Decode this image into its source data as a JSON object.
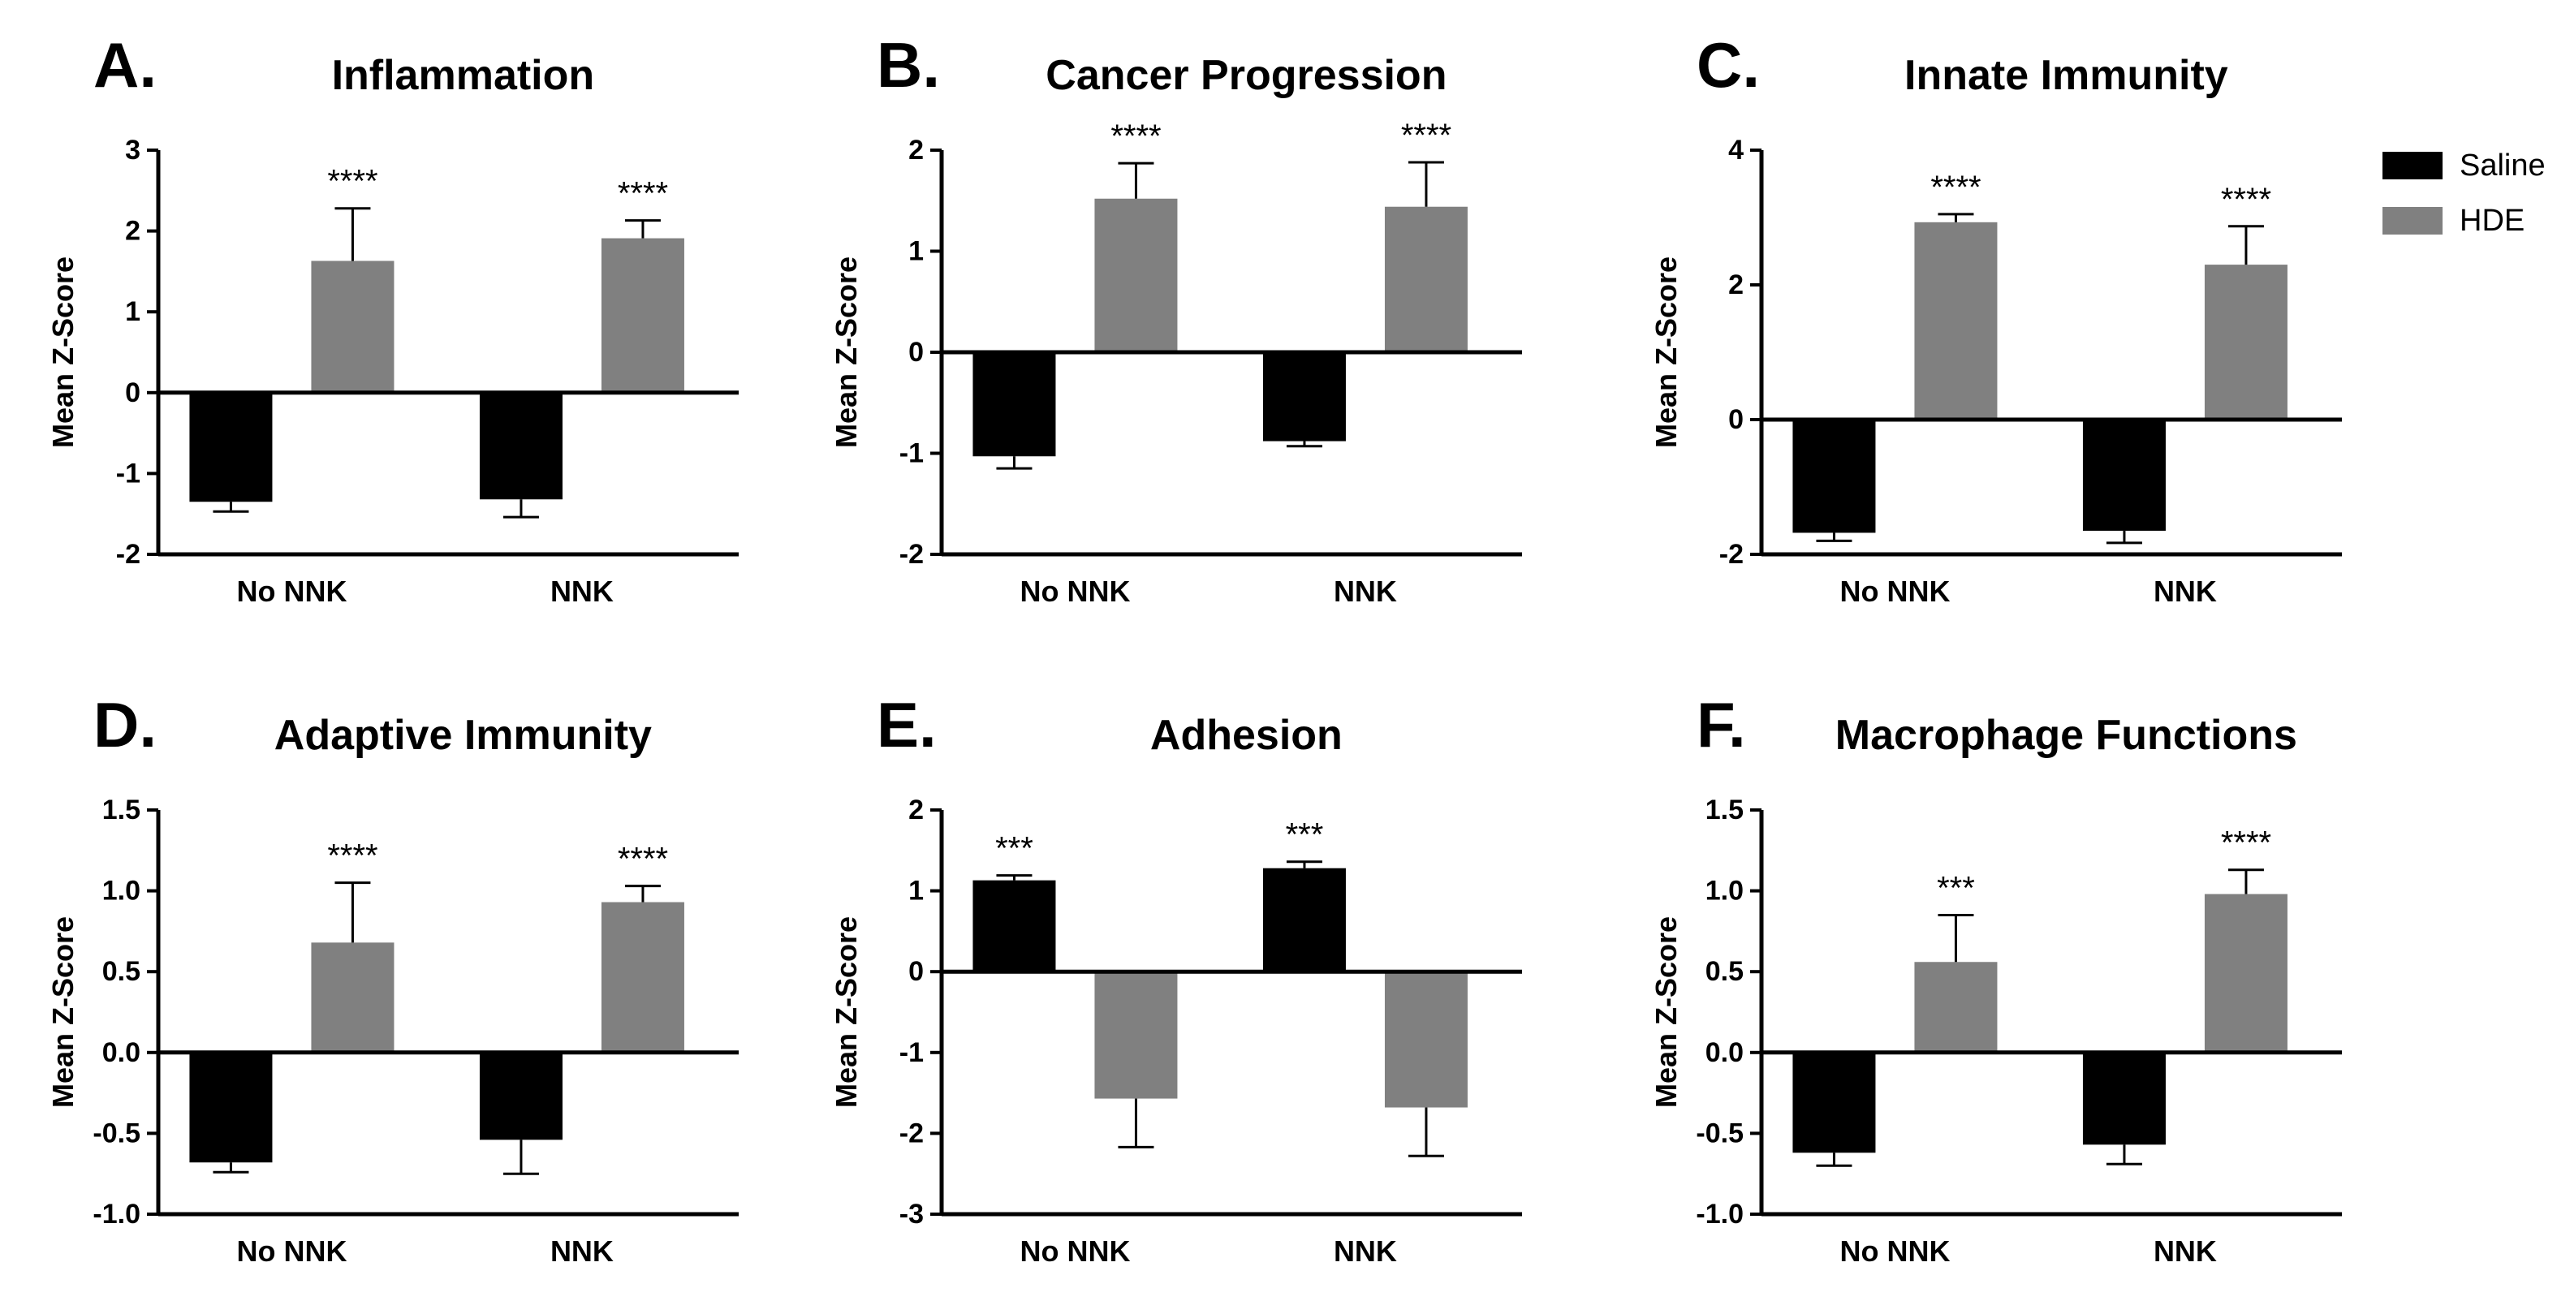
{
  "colors": {
    "saline": "#000000",
    "hde": "#808080"
  },
  "legend": [
    {
      "key": "saline",
      "label": "Saline"
    },
    {
      "key": "hde",
      "label": "HDE"
    }
  ],
  "chart_data": [
    {
      "type": "bar",
      "letter": "A.",
      "title": "Inflammation",
      "ylabel": "Mean Z-Score",
      "categories": [
        "No NNK",
        "NNK"
      ],
      "ylim": [
        -2,
        3
      ],
      "yticks": [
        {
          "v": 3,
          "label": "3"
        },
        {
          "v": 2,
          "label": "2"
        },
        {
          "v": 1,
          "label": "1"
        },
        {
          "v": 0,
          "label": "0"
        },
        {
          "v": -1,
          "label": "-1"
        },
        {
          "v": -2,
          "label": "-2"
        }
      ],
      "series": [
        {
          "name": "Saline",
          "key": "saline",
          "values": [
            -1.35,
            -1.32
          ],
          "errors": [
            0.12,
            0.22
          ],
          "sig": [
            "",
            ""
          ]
        },
        {
          "name": "HDE",
          "key": "hde",
          "values": [
            1.63,
            1.91
          ],
          "errors": [
            0.65,
            0.22
          ],
          "sig": [
            "****",
            "****"
          ]
        }
      ]
    },
    {
      "type": "bar",
      "letter": "B.",
      "title": "Cancer Progression",
      "ylabel": "Mean Z-Score",
      "categories": [
        "No NNK",
        "NNK"
      ],
      "ylim": [
        -2,
        2
      ],
      "yticks": [
        {
          "v": 2,
          "label": "2"
        },
        {
          "v": 1,
          "label": "1"
        },
        {
          "v": 0,
          "label": "0"
        },
        {
          "v": -1,
          "label": "-1"
        },
        {
          "v": -2,
          "label": "-2"
        }
      ],
      "series": [
        {
          "name": "Saline",
          "key": "saline",
          "values": [
            -1.03,
            -0.88
          ],
          "errors": [
            0.12,
            0.05
          ],
          "sig": [
            "",
            ""
          ]
        },
        {
          "name": "HDE",
          "key": "hde",
          "values": [
            1.52,
            1.44
          ],
          "errors": [
            0.35,
            0.44
          ],
          "sig": [
            "****",
            "****"
          ]
        }
      ]
    },
    {
      "type": "bar",
      "letter": "C.",
      "title": "Innate Immunity",
      "ylabel": "Mean Z-Score",
      "categories": [
        "No NNK",
        "NNK"
      ],
      "ylim": [
        -2,
        4
      ],
      "yticks": [
        {
          "v": 4,
          "label": "4"
        },
        {
          "v": 2,
          "label": "2"
        },
        {
          "v": 0,
          "label": "0"
        },
        {
          "v": -2,
          "label": "-2"
        }
      ],
      "series": [
        {
          "name": "Saline",
          "key": "saline",
          "values": [
            -1.68,
            -1.65
          ],
          "errors": [
            0.12,
            0.18
          ],
          "sig": [
            "",
            ""
          ]
        },
        {
          "name": "HDE",
          "key": "hde",
          "values": [
            2.93,
            2.3
          ],
          "errors": [
            0.12,
            0.57
          ],
          "sig": [
            "****",
            "****"
          ]
        }
      ]
    },
    {
      "type": "bar",
      "letter": "D.",
      "title": "Adaptive Immunity",
      "ylabel": "Mean Z-Score",
      "categories": [
        "No NNK",
        "NNK"
      ],
      "ylim": [
        -1.0,
        1.5
      ],
      "yticks": [
        {
          "v": 1.5,
          "label": "1.5"
        },
        {
          "v": 1.0,
          "label": "1.0"
        },
        {
          "v": 0.5,
          "label": "0.5"
        },
        {
          "v": 0,
          "label": "0.0"
        },
        {
          "v": -0.5,
          "label": "-0.5"
        },
        {
          "v": -1.0,
          "label": "-1.0"
        }
      ],
      "series": [
        {
          "name": "Saline",
          "key": "saline",
          "values": [
            -0.68,
            -0.54
          ],
          "errors": [
            0.06,
            0.21
          ],
          "sig": [
            "",
            ""
          ]
        },
        {
          "name": "HDE",
          "key": "hde",
          "values": [
            0.68,
            0.93
          ],
          "errors": [
            0.37,
            0.1
          ],
          "sig": [
            "****",
            "****"
          ]
        }
      ]
    },
    {
      "type": "bar",
      "letter": "E.",
      "title": "Adhesion",
      "ylabel": "Mean Z-Score",
      "categories": [
        "No NNK",
        "NNK"
      ],
      "ylim": [
        -3,
        2
      ],
      "yticks": [
        {
          "v": 2,
          "label": "2"
        },
        {
          "v": 1,
          "label": "1"
        },
        {
          "v": 0,
          "label": "0"
        },
        {
          "v": -1,
          "label": "-1"
        },
        {
          "v": -2,
          "label": "-2"
        },
        {
          "v": -3,
          "label": "-3"
        }
      ],
      "series": [
        {
          "name": "Saline",
          "key": "saline",
          "values": [
            1.13,
            1.28
          ],
          "errors": [
            0.06,
            0.08
          ],
          "sig": [
            "***",
            "***"
          ]
        },
        {
          "name": "HDE",
          "key": "hde",
          "values": [
            -1.57,
            -1.68
          ],
          "errors": [
            0.6,
            0.6
          ],
          "sig": [
            "",
            ""
          ]
        }
      ]
    },
    {
      "type": "bar",
      "letter": "F.",
      "title": "Macrophage Functions",
      "ylabel": "Mean Z-Score",
      "categories": [
        "No NNK",
        "NNK"
      ],
      "ylim": [
        -1.0,
        1.5
      ],
      "yticks": [
        {
          "v": 1.5,
          "label": "1.5"
        },
        {
          "v": 1.0,
          "label": "1.0"
        },
        {
          "v": 0.5,
          "label": "0.5"
        },
        {
          "v": 0,
          "label": "0.0"
        },
        {
          "v": -0.5,
          "label": "-0.5"
        },
        {
          "v": -1.0,
          "label": "-1.0"
        }
      ],
      "series": [
        {
          "name": "Saline",
          "key": "saline",
          "values": [
            -0.62,
            -0.57
          ],
          "errors": [
            0.08,
            0.12
          ],
          "sig": [
            "",
            ""
          ]
        },
        {
          "name": "HDE",
          "key": "hde",
          "values": [
            0.56,
            0.98
          ],
          "errors": [
            0.29,
            0.15
          ],
          "sig": [
            "***",
            "****"
          ]
        }
      ]
    }
  ]
}
